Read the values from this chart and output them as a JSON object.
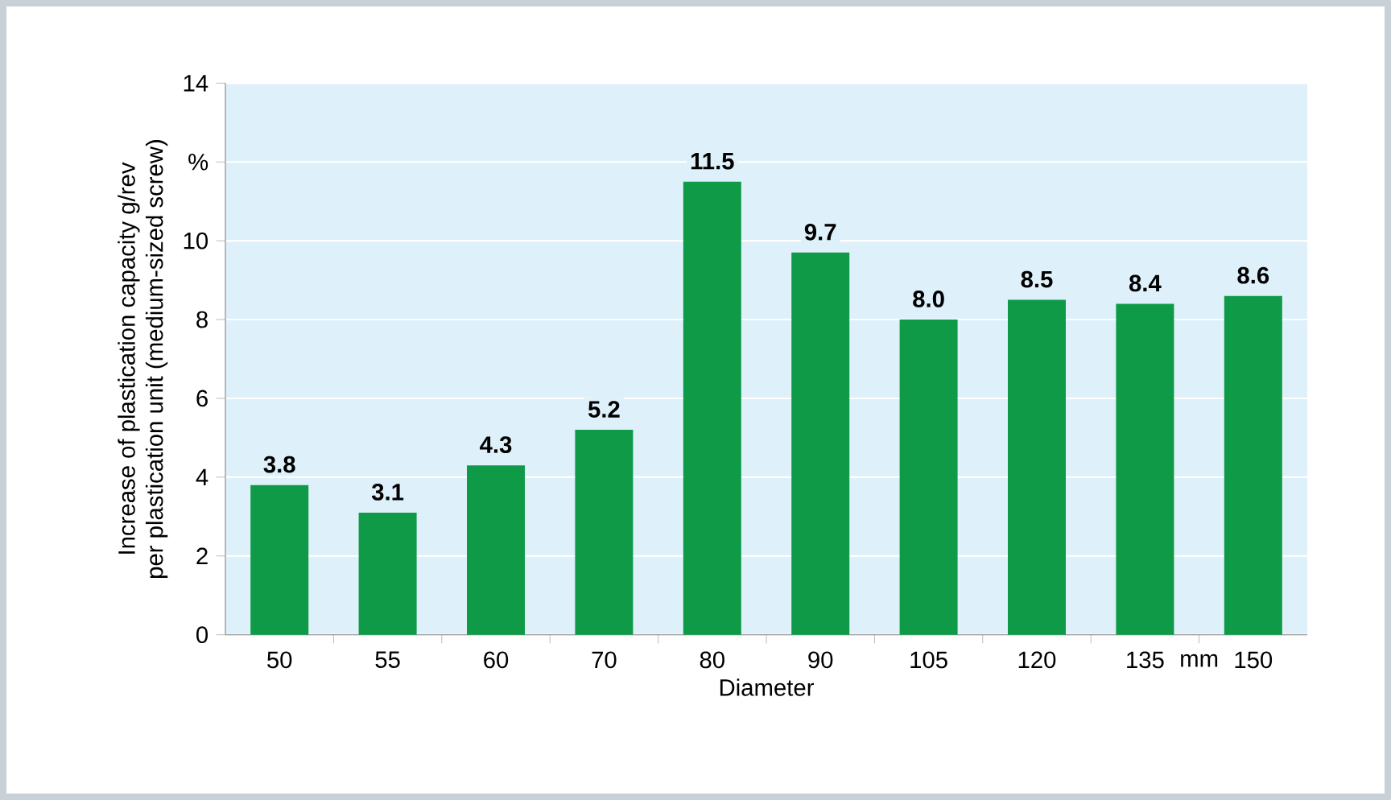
{
  "chart_data": {
    "type": "bar",
    "xlabel": "Diameter",
    "ylabel": "Increase of plastication capacity g/rev\nper plastication unit (medium-sized screw)",
    "categories": [
      "50",
      "55",
      "60",
      "70",
      "80",
      "90",
      "105",
      "120",
      "135",
      "150"
    ],
    "values": [
      3.8,
      3.1,
      4.3,
      5.2,
      11.5,
      9.7,
      8.0,
      8.5,
      8.4,
      8.6
    ],
    "value_labels": [
      "3.8",
      "3.1",
      "4.3",
      "5.2",
      "11.5",
      "9.7",
      "8.0",
      "8.5",
      "8.4",
      "8.6"
    ],
    "color": "#0f9a48",
    "ylim": [
      0,
      14
    ],
    "yticks": [
      0,
      2,
      4,
      6,
      8,
      10,
      {
        "value": 12,
        "label": "%"
      },
      14
    ],
    "grid": "y",
    "annotations": [
      "mm"
    ]
  }
}
